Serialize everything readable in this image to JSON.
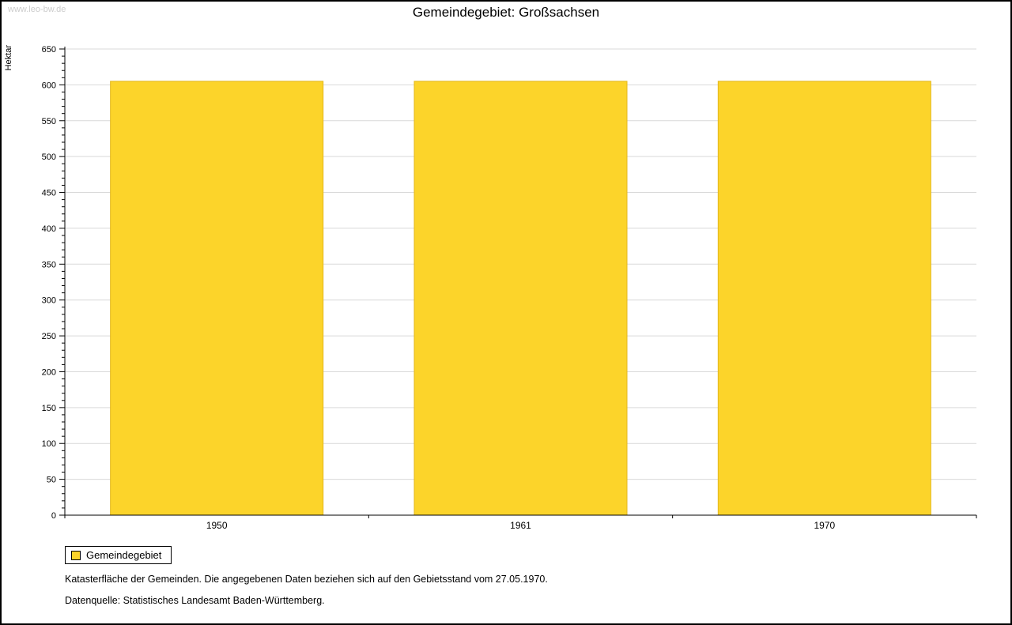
{
  "watermark": "www.leo-bw.de",
  "chart_data": {
    "type": "bar",
    "title": "Gemeindegebiet: Großsachsen",
    "categories": [
      "1950",
      "1961",
      "1970"
    ],
    "series": [
      {
        "name": "Gemeindegebiet",
        "values": [
          605,
          605,
          605
        ]
      }
    ],
    "xlabel": "",
    "ylabel": "Hektar",
    "ylim": [
      0,
      650
    ],
    "y_major_step": 50,
    "y_minor_step": 10,
    "grid": true,
    "legend_position": "bottom-left",
    "bar_color": "#fcd42a",
    "bar_border_color": "#e3b71f",
    "gridline_color": "#d9d9d9",
    "axis_color": "#000000"
  },
  "legend": {
    "items": [
      {
        "label": "Gemeindegebiet",
        "color": "#fcd42a"
      }
    ]
  },
  "footnotes": [
    "Katasterfläche der Gemeinden. Die angegebenen Daten beziehen sich auf den Gebietsstand vom 27.05.1970.",
    "Datenquelle: Statistisches Landesamt Baden-Württemberg."
  ]
}
